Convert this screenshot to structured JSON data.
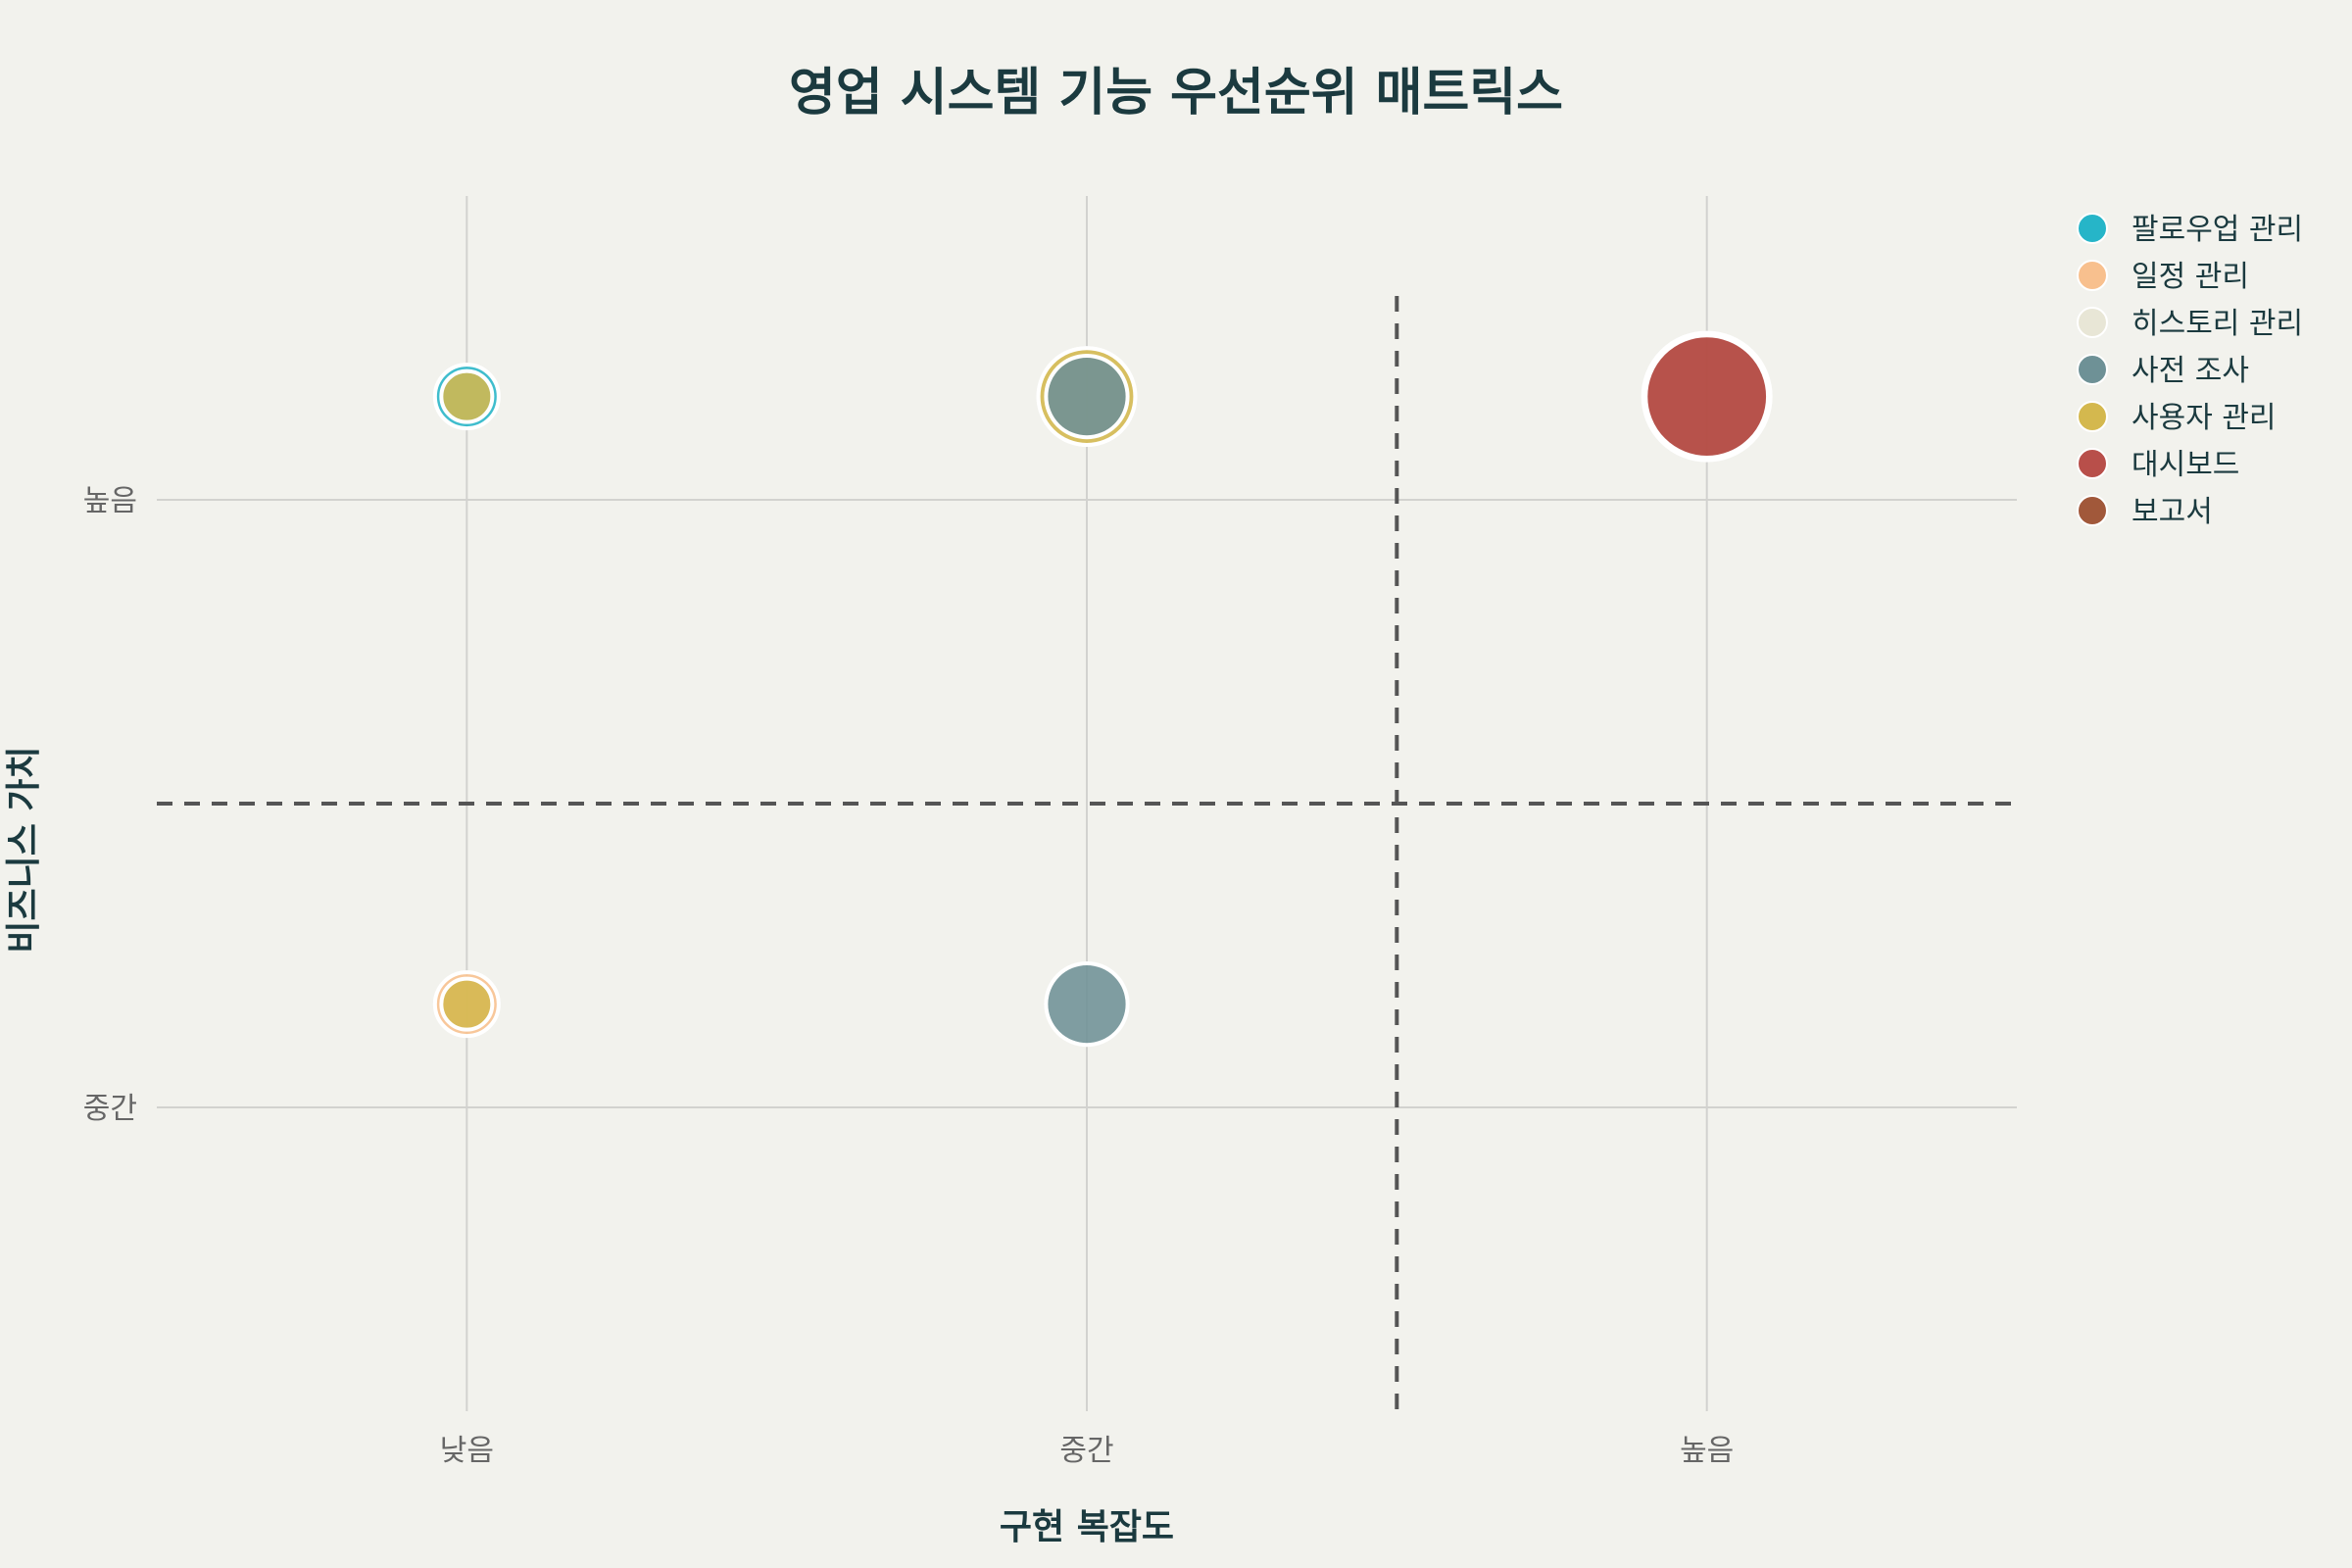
{
  "chart_data": {
    "type": "scatter",
    "title": "영업 시스템 기능 우선순위 매트릭스",
    "xlabel": "구현 복잡도",
    "ylabel": "비즈니스 가치",
    "x_categories": [
      "낮음",
      "중간",
      "높음"
    ],
    "y_categories": [
      "중간",
      "높음"
    ],
    "xlim": [
      0.5,
      3.5
    ],
    "ylim": [
      0.5,
      2.5
    ],
    "divider_x": 3,
    "divider_y": 1.5,
    "grid": true,
    "legend_position": "top-right",
    "series": [
      {
        "name": "팔로우업 관리",
        "color": "#26b5c8",
        "points": [
          {
            "x": 1,
            "y": 2.17,
            "size": 2.5
          }
        ]
      },
      {
        "name": "일정 관리",
        "color": "#f8c08e",
        "points": [
          {
            "x": 1,
            "y": 1.17,
            "size": 2.5
          }
        ]
      },
      {
        "name": "히스토리 관리",
        "color": "#e8e6d6",
        "points": [
          {
            "x": 2,
            "y": 2.17,
            "size": 3.8
          }
        ]
      },
      {
        "name": "사전 조사",
        "color": "#6e9196",
        "points": [
          {
            "x": 2,
            "y": 2.17,
            "size": 3.2
          },
          {
            "x": 2,
            "y": 1.17,
            "size": 3.2
          }
        ]
      },
      {
        "name": "사용자 관리",
        "color": "#d4b84e",
        "points": [
          {
            "x": 1,
            "y": 2.17,
            "size": 2.0
          },
          {
            "x": 1,
            "y": 1.17,
            "size": 2.0
          },
          {
            "x": 2,
            "y": 2.17,
            "size": 3.8
          }
        ]
      },
      {
        "name": "대시보드",
        "color": "#b84f4a",
        "points": [
          {
            "x": 3,
            "y": 2.17,
            "size": 4.8
          }
        ]
      },
      {
        "name": "보고서",
        "color": "#a1583a",
        "points": [
          {
            "x": 3,
            "y": 2.17,
            "size": 5.0
          }
        ]
      }
    ]
  }
}
